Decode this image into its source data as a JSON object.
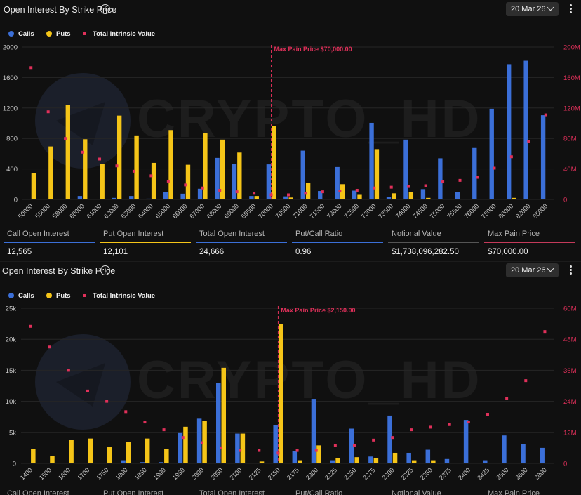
{
  "panels": [
    {
      "title": "Open Interest By Strike Price",
      "date": "20 Mar 26",
      "legend": {
        "calls": "Calls",
        "puts": "Puts",
        "intrinsic": "Total Intrinsic Value"
      },
      "stats": [
        {
          "label": "Call Open Interest",
          "value": "12,565",
          "color": "#3b6fd8"
        },
        {
          "label": "Put Open Interest",
          "value": "12,101",
          "color": "#f5c518"
        },
        {
          "label": "Total Open Interest",
          "value": "24,666",
          "color": "#3b6fd8"
        },
        {
          "label": "Put/Call Ratio",
          "value": "0.96",
          "color": "#3b6fd8"
        },
        {
          "label": "Notional Value",
          "value": "$1,738,096,282.50",
          "color": "#555555"
        },
        {
          "label": "Max Pain Price",
          "value": "$70,000.00",
          "color": "#c43a5a"
        }
      ]
    },
    {
      "title": "Open Interest By Strike Price",
      "date": "20 Mar 26",
      "legend": {
        "calls": "Calls",
        "puts": "Puts",
        "intrinsic": "Total Intrinsic Value"
      },
      "stats": [
        {
          "label": "Call Open Interest",
          "color": "#3b6fd8"
        },
        {
          "label": "Put Open Interest",
          "color": "#f5c518"
        },
        {
          "label": "Total Open Interest",
          "color": "#3b6fd8"
        },
        {
          "label": "Put/Call Ratio",
          "color": "#3b6fd8"
        },
        {
          "label": "Notional Value",
          "color": "#555555"
        },
        {
          "label": "Max Pain Price",
          "color": "#c43a5a"
        }
      ]
    }
  ],
  "watermark": "CRYPTO_HD",
  "colors": {
    "calls": "#3b6fd8",
    "puts": "#f5c518",
    "intrinsic": "#e0305a",
    "maxpain": "#e0305a",
    "grid": "#262626",
    "axis": "#c8c8c8",
    "rightAxis": "#e0305a"
  },
  "chart_data": [
    {
      "type": "bar",
      "title": "Open Interest By Strike Price",
      "categories": [
        "50000",
        "55000",
        "58000",
        "60000",
        "61000",
        "62000",
        "63000",
        "64000",
        "65000",
        "66000",
        "67000",
        "68000",
        "69000",
        "69500",
        "70000",
        "70500",
        "71000",
        "71500",
        "72000",
        "72500",
        "73000",
        "73500",
        "74000",
        "74500",
        "75000",
        "75500",
        "76000",
        "78000",
        "80000",
        "82000",
        "85000"
      ],
      "series": [
        {
          "name": "Calls",
          "values": [
            0,
            0,
            0,
            45,
            0,
            20,
            45,
            10,
            95,
            75,
            140,
            545,
            465,
            45,
            460,
            40,
            640,
            110,
            425,
            115,
            1005,
            30,
            785,
            135,
            540,
            100,
            675,
            1190,
            1775,
            1820,
            1105
          ]
        },
        {
          "name": "Puts",
          "values": [
            345,
            695,
            1235,
            790,
            470,
            1100,
            840,
            480,
            910,
            455,
            870,
            785,
            615,
            45,
            960,
            25,
            215,
            0,
            200,
            60,
            660,
            80,
            95,
            20,
            0,
            0,
            0,
            0,
            20,
            0,
            0
          ]
        },
        {
          "name": "Total Intrinsic Value",
          "axis": "right",
          "values": [
            173,
            115,
            80,
            62,
            53,
            44,
            37,
            31,
            24,
            19,
            15,
            12,
            10,
            8,
            6,
            6,
            8,
            10,
            11,
            12,
            15,
            16,
            17,
            18,
            23,
            25,
            29,
            41,
            56,
            76,
            111
          ]
        }
      ],
      "ylim": [
        0,
        2000
      ],
      "yticks": [
        0,
        400,
        800,
        1200,
        1600,
        2000
      ],
      "y2lim": [
        0,
        200
      ],
      "y2ticks": [
        "0",
        "40M",
        "80M",
        "120M",
        "160M",
        "200M"
      ],
      "max_pain": {
        "category": "70000",
        "label": "Max Pain Price $70,000.00"
      }
    },
    {
      "type": "bar",
      "title": "Open Interest By Strike Price",
      "categories": [
        "1400",
        "1500",
        "1600",
        "1700",
        "1750",
        "1800",
        "1850",
        "1900",
        "1950",
        "2000",
        "2050",
        "2100",
        "2125",
        "2150",
        "2175",
        "2200",
        "2225",
        "2250",
        "2275",
        "2300",
        "2325",
        "2350",
        "2375",
        "2400",
        "2425",
        "2500",
        "2600",
        "2800"
      ],
      "series": [
        {
          "name": "Calls",
          "values": [
            0,
            0,
            0,
            0,
            0,
            500,
            200,
            200,
            5000,
            7200,
            12900,
            4800,
            0,
            6200,
            2000,
            10400,
            500,
            5600,
            1100,
            7700,
            1700,
            2200,
            700,
            7000,
            500,
            4500,
            3100,
            2500
          ]
        },
        {
          "name": "Puts",
          "values": [
            2300,
            1200,
            3800,
            4000,
            2600,
            3500,
            4000,
            2300,
            5900,
            6800,
            15400,
            4800,
            300,
            22400,
            500,
            2900,
            800,
            1000,
            800,
            1700,
            500,
            500,
            0,
            0,
            0,
            0,
            0,
            0
          ]
        },
        {
          "name": "Total Intrinsic Value",
          "axis": "right",
          "values": [
            53,
            45,
            36,
            28,
            24,
            20,
            16,
            13,
            10,
            8,
            6,
            5,
            5,
            4,
            5,
            5,
            7,
            7,
            9,
            10,
            13,
            14,
            15,
            16,
            19,
            25,
            32,
            51
          ]
        }
      ],
      "ylim": [
        0,
        25000
      ],
      "yticks": [
        "0",
        "5k",
        "10k",
        "15k",
        "20k",
        "25k"
      ],
      "y2lim": [
        0,
        60
      ],
      "y2ticks": [
        "0",
        "12M",
        "24M",
        "36M",
        "48M",
        "60M"
      ],
      "max_pain": {
        "category": "2150",
        "label": "Max Pain Price $2,150.00"
      }
    }
  ]
}
